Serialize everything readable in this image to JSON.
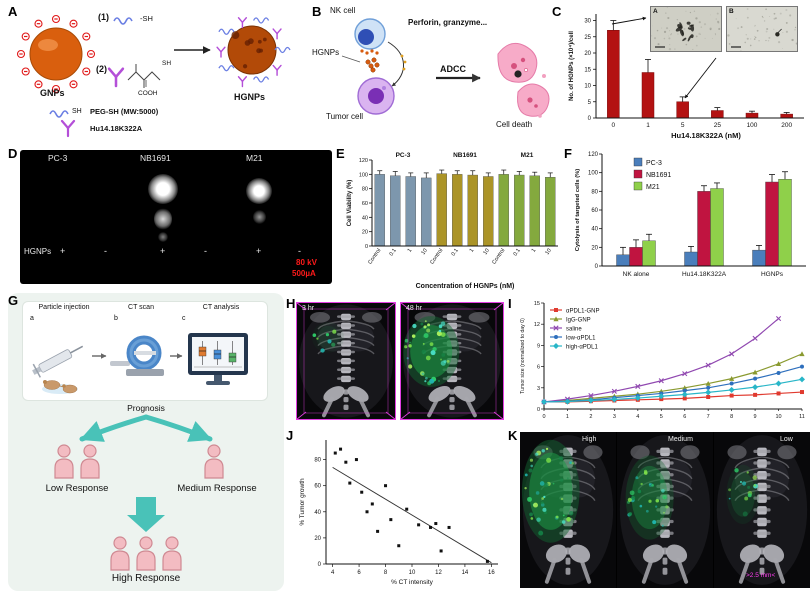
{
  "panelA": {
    "label": "A",
    "gnps": "GNPs",
    "step1": "(1)",
    "step2": "(2)",
    "sh_tag": "-SH",
    "sh_chem": "SH",
    "cooh": "COOH",
    "hgnps": "HGNPs",
    "legend_sh": "SH",
    "peg": "PEG-SH (MW:5000)",
    "antibody": "Hu14.18K322A"
  },
  "panelB": {
    "label": "B",
    "nk_cell": "NK cell",
    "hgnps": "HGNPs",
    "tumor_cell": "Tumor cell",
    "perforin": "Perforin, granzyme...",
    "adcc": "ADCC",
    "cell_death": "Cell death"
  },
  "panelC": {
    "label": "C",
    "inset_a": "A",
    "inset_b": "B"
  },
  "panelD": {
    "label": "D",
    "cell_lines": [
      "PC-3",
      "NB1691",
      "M21"
    ],
    "row_label": "HGNPs",
    "signs": [
      "+",
      "-",
      "+",
      "-",
      "+",
      "-"
    ],
    "voltage": "80 kV",
    "current": "500µA"
  },
  "panelE": {
    "label": "E"
  },
  "panelF": {
    "label": "F"
  },
  "panelG": {
    "label": "G",
    "steps": [
      {
        "letter": "a",
        "title": "Particle injection"
      },
      {
        "letter": "b",
        "title": "CT scan"
      },
      {
        "letter": "c",
        "title": "CT analysis"
      }
    ],
    "prognosis": "Prognosis",
    "low": "Low Response",
    "medium": "Medium Response",
    "high": "High Response"
  },
  "panelH": {
    "label": "H",
    "t1": "3 hr",
    "t2": "48 hr"
  },
  "panelI": {
    "label": "I"
  },
  "panelJ": {
    "label": "J"
  },
  "panelK": {
    "label": "K",
    "high": "High",
    "medium": "Medium",
    "low": "Low",
    "scalebar": ">2.5 mm<"
  },
  "chart_data": [
    {
      "panel": "C",
      "type": "bar",
      "categories": [
        "0",
        "1",
        "5",
        "25",
        "100",
        "200"
      ],
      "values": [
        27,
        14,
        5,
        2.3,
        1.5,
        1.2
      ],
      "errors": [
        3,
        4,
        1.5,
        0.9,
        0.6,
        0.5
      ],
      "xlabel": "Hu14.18K322A (nM)",
      "ylabel": "No. of HGNPs (×10⁴)/cell",
      "ylim": [
        0,
        32
      ],
      "yticks": [
        0,
        5,
        10,
        15,
        20,
        25,
        30
      ],
      "bar_color": "#b31212"
    },
    {
      "panel": "E",
      "type": "bar",
      "group_labels": [
        "PC-3",
        "NB1691",
        "M21"
      ],
      "group_colors": [
        "#7d97ad",
        "#ab9427",
        "#84a93e"
      ],
      "categories": [
        "Control",
        "0.1",
        "1",
        "10",
        "Control",
        "0.1",
        "1",
        "10",
        "Control",
        "0.1",
        "1",
        "10"
      ],
      "values": [
        100,
        98,
        97,
        95,
        101,
        100,
        99,
        97,
        100,
        99,
        98,
        96
      ],
      "errors": [
        5,
        6,
        5,
        7,
        5,
        5,
        6,
        5,
        6,
        5,
        5,
        6
      ],
      "xlabel": "Concentration of HGNPs (nM)",
      "ylabel": "Cell Viability (%)",
      "ylim": [
        0,
        120
      ],
      "yticks": [
        0,
        20,
        40,
        60,
        80,
        100,
        120
      ]
    },
    {
      "panel": "F",
      "type": "bar",
      "categories": [
        "NK alone",
        "Hu14.18K322A",
        "HGNPs"
      ],
      "series": [
        {
          "name": "PC-3",
          "color": "#4a7ebb",
          "values": [
            12,
            15,
            17
          ],
          "errors": [
            8,
            6,
            5
          ]
        },
        {
          "name": "NB1691",
          "color": "#c01440",
          "values": [
            20,
            80,
            90
          ],
          "errors": [
            8,
            6,
            8
          ]
        },
        {
          "name": "M21",
          "color": "#8fd04a",
          "values": [
            27,
            83,
            93
          ],
          "errors": [
            7,
            6,
            8
          ]
        }
      ],
      "ylabel": "Cytolysis of targeted cells (%)",
      "ylim": [
        0,
        120
      ],
      "yticks": [
        0,
        20,
        40,
        60,
        80,
        100,
        120
      ]
    },
    {
      "panel": "I",
      "type": "line",
      "x": [
        0,
        1,
        2,
        3,
        4,
        5,
        6,
        7,
        8,
        9,
        10,
        11
      ],
      "series": [
        {
          "name": "αPDL1-GNP",
          "color": "#e03a2f",
          "marker": "square",
          "values": [
            1,
            1,
            1.1,
            1.2,
            1.3,
            1.4,
            1.5,
            1.7,
            1.9,
            2,
            2.2,
            2.4
          ]
        },
        {
          "name": "IgG-GNP",
          "color": "#8a9a30",
          "marker": "triangle",
          "values": [
            1,
            1.2,
            1.5,
            1.8,
            2.1,
            2.5,
            3,
            3.6,
            4.3,
            5.2,
            6.4,
            7.8
          ]
        },
        {
          "name": "saline",
          "color": "#9048b0",
          "marker": "x",
          "values": [
            1,
            1.4,
            1.9,
            2.5,
            3.2,
            4,
            5,
            6.2,
            7.8,
            10,
            12.8,
            null
          ]
        },
        {
          "name": "low-αPDL1",
          "color": "#2e6fbd",
          "marker": "circle",
          "values": [
            1,
            1.1,
            1.3,
            1.6,
            1.9,
            2.2,
            2.6,
            3,
            3.6,
            4.3,
            5.1,
            6
          ]
        },
        {
          "name": "high-αPDL1",
          "color": "#29b6c8",
          "marker": "diamond",
          "values": [
            1,
            1.05,
            1.2,
            1.35,
            1.55,
            1.8,
            2.05,
            2.35,
            2.7,
            3.1,
            3.6,
            4.2
          ]
        }
      ],
      "ylabel": "Tumor size (normalized to day 0)",
      "ylim": [
        0,
        15
      ],
      "yticks": [
        0,
        3,
        6,
        9,
        12,
        15
      ]
    },
    {
      "panel": "J",
      "type": "scatter",
      "points": [
        [
          4.2,
          85
        ],
        [
          4.6,
          88
        ],
        [
          5,
          78
        ],
        [
          5.3,
          62
        ],
        [
          5.8,
          80
        ],
        [
          6.2,
          55
        ],
        [
          6.6,
          40
        ],
        [
          7,
          46
        ],
        [
          7.4,
          25
        ],
        [
          8,
          60
        ],
        [
          8.4,
          34
        ],
        [
          9,
          14
        ],
        [
          9.6,
          42
        ],
        [
          10.5,
          30
        ],
        [
          11.4,
          28
        ],
        [
          11.8,
          31
        ],
        [
          12.2,
          10
        ],
        [
          12.8,
          28
        ],
        [
          15.7,
          2
        ]
      ],
      "trend": [
        [
          4,
          74
        ],
        [
          16,
          1
        ]
      ],
      "xlabel": "% CT intensity",
      "ylabel": "% Tumor growth",
      "xlim": [
        3.5,
        16.5
      ],
      "ylim": [
        0,
        95
      ],
      "xticks": [
        4,
        6,
        8,
        10,
        12,
        14,
        16
      ],
      "yticks": [
        0,
        20,
        40,
        60,
        80
      ]
    }
  ]
}
